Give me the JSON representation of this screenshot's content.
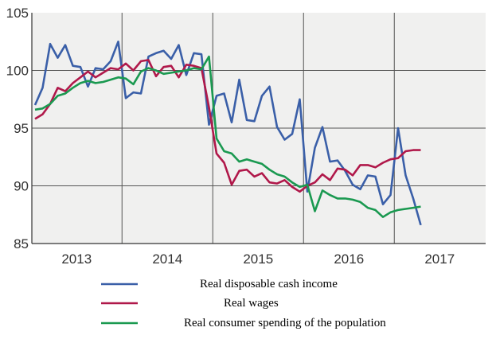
{
  "chart_data": {
    "type": "line",
    "title": "",
    "xlabel": "",
    "ylabel": "",
    "ylim": [
      85,
      105
    ],
    "yticks": [
      85,
      90,
      95,
      100,
      105
    ],
    "x_tick_labels": [
      "2013",
      "2014",
      "2015",
      "2016",
      "2017"
    ],
    "x_start": "2013-01",
    "grid": "horizontal and yearly vertical lines",
    "legend_position": "bottom",
    "series": [
      {
        "name": "Real disposable cash income",
        "color": "#3a5fa8",
        "values": [
          97.0,
          98.5,
          102.3,
          101.1,
          102.2,
          100.4,
          100.3,
          98.6,
          100.2,
          100.1,
          100.8,
          102.5,
          97.6,
          98.1,
          98.0,
          101.2,
          101.5,
          101.7,
          101.0,
          102.2,
          99.6,
          101.5,
          101.4,
          95.3,
          97.8,
          98.0,
          95.5,
          99.2,
          95.7,
          95.6,
          97.8,
          98.6,
          95.1,
          94.0,
          94.5,
          97.5,
          89.5,
          93.3,
          95.1,
          92.1,
          92.2,
          91.3,
          90.1,
          89.7,
          90.9,
          90.8,
          88.4,
          89.2,
          95.0,
          90.9,
          88.9,
          86.6
        ]
      },
      {
        "name": "Real wages",
        "color": "#b0184a",
        "values": [
          95.8,
          96.2,
          97.1,
          98.5,
          98.2,
          98.9,
          99.4,
          99.9,
          99.4,
          99.8,
          100.2,
          100.1,
          100.6,
          100.0,
          100.8,
          100.9,
          99.5,
          100.3,
          100.4,
          99.4,
          100.5,
          100.4,
          100.2,
          96.8,
          92.8,
          92.0,
          90.1,
          91.3,
          91.4,
          90.8,
          91.1,
          90.3,
          90.2,
          90.5,
          89.9,
          89.5,
          90.0,
          90.3,
          91.0,
          90.5,
          91.5,
          91.4,
          90.9,
          91.8,
          91.8,
          91.6,
          92.0,
          92.3,
          92.4,
          93.0,
          93.1,
          93.1
        ]
      },
      {
        "name": "Real consumer spending of the population",
        "color": "#1a9950",
        "values": [
          96.6,
          96.7,
          97.1,
          97.8,
          98.0,
          98.5,
          98.9,
          99.1,
          98.9,
          99.0,
          99.2,
          99.4,
          99.3,
          98.8,
          99.9,
          100.2,
          100.0,
          99.7,
          99.8,
          99.9,
          100.0,
          100.2,
          100.1,
          101.2,
          94.1,
          93.0,
          92.8,
          92.1,
          92.3,
          92.1,
          91.9,
          91.4,
          91.0,
          90.8,
          90.3,
          89.9,
          90.1,
          87.8,
          89.6,
          89.2,
          88.9,
          88.9,
          88.8,
          88.6,
          88.1,
          87.9,
          87.3,
          87.7,
          87.9,
          88.0,
          88.1,
          88.2
        ]
      }
    ]
  }
}
